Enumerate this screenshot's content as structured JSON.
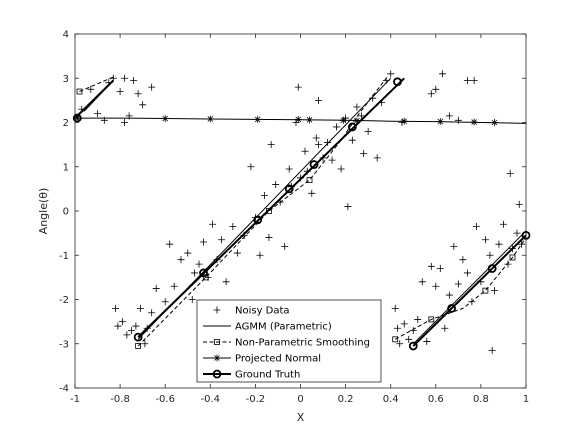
{
  "chart_data": {
    "type": "scatter",
    "xlabel": "X",
    "ylabel": "Angle(θ)",
    "xlim": [
      -1,
      1
    ],
    "ylim": [
      -4,
      4
    ],
    "x_ticks": [
      -1,
      -0.8,
      -0.6,
      -0.4,
      -0.2,
      0,
      0.2,
      0.4,
      0.6,
      0.8,
      1
    ],
    "x_tick_labels": [
      "-1",
      "-0.8",
      "-0.6",
      "-0.4",
      "-0.2",
      "0",
      "0.2",
      "0.4",
      "0.6",
      "0.8",
      "1"
    ],
    "y_ticks": [
      -4,
      -3,
      -2,
      -1,
      0,
      1,
      2,
      3,
      4
    ],
    "y_tick_labels": [
      "-4",
      "-3",
      "-2",
      "-1",
      "0",
      "1",
      "2",
      "3",
      "4"
    ],
    "grid": false,
    "legend_placement": "bottom-center",
    "series": [
      {
        "name": "Noisy Data",
        "style": "plus",
        "color": "#000000",
        "points": [
          [
            -0.97,
            2.3
          ],
          [
            -0.93,
            2.75
          ],
          [
            -0.9,
            2.2
          ],
          [
            -0.87,
            2.05
          ],
          [
            -0.85,
            2.9
          ],
          [
            -0.83,
            3.0
          ],
          [
            -0.8,
            2.7
          ],
          [
            -0.78,
            3.0
          ],
          [
            -0.76,
            2.15
          ],
          [
            -0.74,
            2.95
          ],
          [
            -0.72,
            2.65
          ],
          [
            -0.7,
            2.4
          ],
          [
            -0.78,
            2.0
          ],
          [
            -0.66,
            2.8
          ],
          [
            -0.82,
            -2.2
          ],
          [
            -0.81,
            -2.6
          ],
          [
            -0.79,
            -2.5
          ],
          [
            -0.77,
            -2.8
          ],
          [
            -0.75,
            -2.7
          ],
          [
            -0.73,
            -2.6
          ],
          [
            -0.71,
            -2.2
          ],
          [
            -0.69,
            -3.0
          ],
          [
            -0.68,
            -2.65
          ],
          [
            -0.66,
            -2.3
          ],
          [
            -0.64,
            -1.75
          ],
          [
            -0.6,
            -2.05
          ],
          [
            -0.58,
            -0.75
          ],
          [
            -0.56,
            -1.7
          ],
          [
            -0.53,
            -1.1
          ],
          [
            -0.5,
            -0.95
          ],
          [
            -0.48,
            -2.0
          ],
          [
            -0.47,
            -1.4
          ],
          [
            -0.45,
            -1.2
          ],
          [
            -0.43,
            -0.7
          ],
          [
            -0.41,
            -1.5
          ],
          [
            -0.39,
            -0.3
          ],
          [
            -0.37,
            -1.1
          ],
          [
            -0.35,
            -0.65
          ],
          [
            -0.33,
            -1.6
          ],
          [
            -0.3,
            -0.35
          ],
          [
            -0.28,
            -0.95
          ],
          [
            -0.25,
            -0.55
          ],
          [
            -0.22,
            1.0
          ],
          [
            -0.2,
            -0.15
          ],
          [
            -0.18,
            -1.0
          ],
          [
            -0.16,
            0.35
          ],
          [
            -0.14,
            -0.6
          ],
          [
            -0.13,
            1.5
          ],
          [
            -0.11,
            0.6
          ],
          [
            -0.09,
            0.2
          ],
          [
            -0.07,
            -0.8
          ],
          [
            -0.05,
            0.95
          ],
          [
            -0.04,
            0.55
          ],
          [
            -0.02,
            2.0
          ],
          [
            0.0,
            0.75
          ],
          [
            0.02,
            1.35
          ],
          [
            0.03,
            0.9
          ],
          [
            0.05,
            0.4
          ],
          [
            0.07,
            1.65
          ],
          [
            0.08,
            2.5
          ],
          [
            0.1,
            1.2
          ],
          [
            0.12,
            1.55
          ],
          [
            0.14,
            1.15
          ],
          [
            0.16,
            1.9
          ],
          [
            0.18,
            0.95
          ],
          [
            0.2,
            2.1
          ],
          [
            0.21,
            0.1
          ],
          [
            0.23,
            1.6
          ],
          [
            0.25,
            2.35
          ],
          [
            0.27,
            2.15
          ],
          [
            0.28,
            1.3
          ],
          [
            0.3,
            1.8
          ],
          [
            0.32,
            2.55
          ],
          [
            0.34,
            1.2
          ],
          [
            0.36,
            2.45
          ],
          [
            0.38,
            2.95
          ],
          [
            0.4,
            3.1
          ],
          [
            0.08,
            1.5
          ],
          [
            -0.01,
            2.8
          ],
          [
            0.42,
            -2.2
          ],
          [
            0.43,
            -2.65
          ],
          [
            0.44,
            -3.0
          ],
          [
            0.46,
            -2.55
          ],
          [
            0.48,
            -2.9
          ],
          [
            0.5,
            -2.7
          ],
          [
            0.52,
            -2.45
          ],
          [
            0.54,
            -1.6
          ],
          [
            0.56,
            -2.95
          ],
          [
            0.58,
            -1.25
          ],
          [
            0.6,
            -1.7
          ],
          [
            0.62,
            -1.3
          ],
          [
            0.64,
            -2.65
          ],
          [
            0.66,
            -1.9
          ],
          [
            0.68,
            -0.8
          ],
          [
            0.7,
            -1.65
          ],
          [
            0.72,
            -1.1
          ],
          [
            0.74,
            -1.4
          ],
          [
            0.76,
            -2.05
          ],
          [
            0.78,
            -0.35
          ],
          [
            0.8,
            -1.6
          ],
          [
            0.82,
            -0.65
          ],
          [
            0.84,
            -1.0
          ],
          [
            0.86,
            -1.8
          ],
          [
            0.88,
            -0.75
          ],
          [
            0.9,
            -0.3
          ],
          [
            0.92,
            -1.2
          ],
          [
            0.94,
            -0.85
          ],
          [
            0.96,
            -0.5
          ],
          [
            0.97,
            0.15
          ],
          [
            0.98,
            -0.75
          ],
          [
            0.93,
            0.85
          ],
          [
            0.85,
            -3.15
          ],
          [
            0.6,
            2.75
          ],
          [
            0.63,
            3.1
          ],
          [
            0.7,
            2.05
          ],
          [
            0.74,
            2.95
          ],
          [
            0.77,
            2.95
          ],
          [
            0.58,
            2.65
          ],
          [
            0.45,
            2.0
          ],
          [
            0.66,
            2.15
          ]
        ]
      },
      {
        "name": "AGMM (Parametric)",
        "style": "solid",
        "color": "#000000",
        "segments": [
          [
            [
              -0.96,
              2.25
            ],
            [
              -0.83,
              2.95
            ]
          ],
          [
            [
              -0.72,
              -2.9
            ],
            [
              0.4,
              3.0
            ]
          ],
          [
            [
              0.5,
              -3.0
            ],
            [
              1.0,
              -0.45
            ]
          ]
        ]
      },
      {
        "name": "Non-Parametric Smoothing",
        "style": "dashed-square",
        "color": "#000000",
        "segments": [
          [
            [
              -0.98,
              2.7
            ],
            [
              -0.82,
              3.05
            ]
          ],
          [
            [
              -0.72,
              -3.05
            ],
            [
              -0.42,
              -1.5
            ],
            [
              -0.14,
              0.0
            ],
            [
              0.04,
              0.7
            ],
            [
              0.18,
              1.6
            ],
            [
              0.26,
              2.2
            ],
            [
              0.38,
              3.0
            ]
          ],
          [
            [
              0.42,
              -2.9
            ],
            [
              0.58,
              -2.45
            ],
            [
              0.72,
              -2.2
            ],
            [
              0.82,
              -1.8
            ],
            [
              0.94,
              -1.05
            ],
            [
              1.0,
              -0.6
            ]
          ]
        ],
        "markers": [
          [
            -0.98,
            2.7
          ],
          [
            -0.72,
            -3.05
          ],
          [
            -0.42,
            -1.5
          ],
          [
            -0.14,
            0.0
          ],
          [
            0.04,
            0.7
          ],
          [
            0.42,
            -2.9
          ],
          [
            0.58,
            -2.45
          ],
          [
            0.82,
            -1.8
          ],
          [
            0.94,
            -1.05
          ]
        ]
      },
      {
        "name": "Projected Normal",
        "style": "solid-star",
        "color": "#000000",
        "points": [
          [
            -1.0,
            2.1
          ],
          [
            -0.8,
            2.1
          ],
          [
            -0.6,
            2.09
          ],
          [
            -0.4,
            2.08
          ],
          [
            -0.2,
            2.07
          ],
          [
            0.0,
            2.06
          ],
          [
            0.2,
            2.05
          ],
          [
            0.4,
            2.03
          ],
          [
            0.6,
            2.02
          ],
          [
            0.8,
            2.0
          ],
          [
            1.0,
            1.98
          ]
        ],
        "markers": [
          [
            -0.99,
            2.1
          ],
          [
            -0.6,
            2.09
          ],
          [
            -0.4,
            2.08
          ],
          [
            -0.19,
            2.07
          ],
          [
            -0.01,
            2.07
          ],
          [
            0.04,
            2.06
          ],
          [
            0.19,
            2.05
          ],
          [
            0.25,
            2.04
          ],
          [
            0.46,
            2.03
          ],
          [
            0.62,
            2.02
          ],
          [
            0.77,
            2.01
          ],
          [
            0.86,
            2.0
          ]
        ]
      },
      {
        "name": "Ground Truth",
        "style": "bold-circle",
        "color": "#000000",
        "segments": [
          [
            [
              -1.0,
              2.1
            ],
            [
              -0.83,
              2.95
            ]
          ],
          [
            [
              -0.72,
              -2.85
            ],
            [
              0.46,
              3.0
            ]
          ],
          [
            [
              0.5,
              -3.05
            ],
            [
              1.0,
              -0.55
            ]
          ]
        ],
        "markers": [
          [
            -0.99,
            2.1
          ],
          [
            -0.72,
            -2.85
          ],
          [
            -0.43,
            -1.4
          ],
          [
            -0.19,
            -0.2
          ],
          [
            -0.05,
            0.5
          ],
          [
            0.06,
            1.05
          ],
          [
            0.23,
            1.9
          ],
          [
            0.43,
            2.92
          ],
          [
            0.5,
            -3.05
          ],
          [
            0.67,
            -2.2
          ],
          [
            0.85,
            -1.3
          ],
          [
            1.0,
            -0.55
          ]
        ]
      }
    ]
  }
}
